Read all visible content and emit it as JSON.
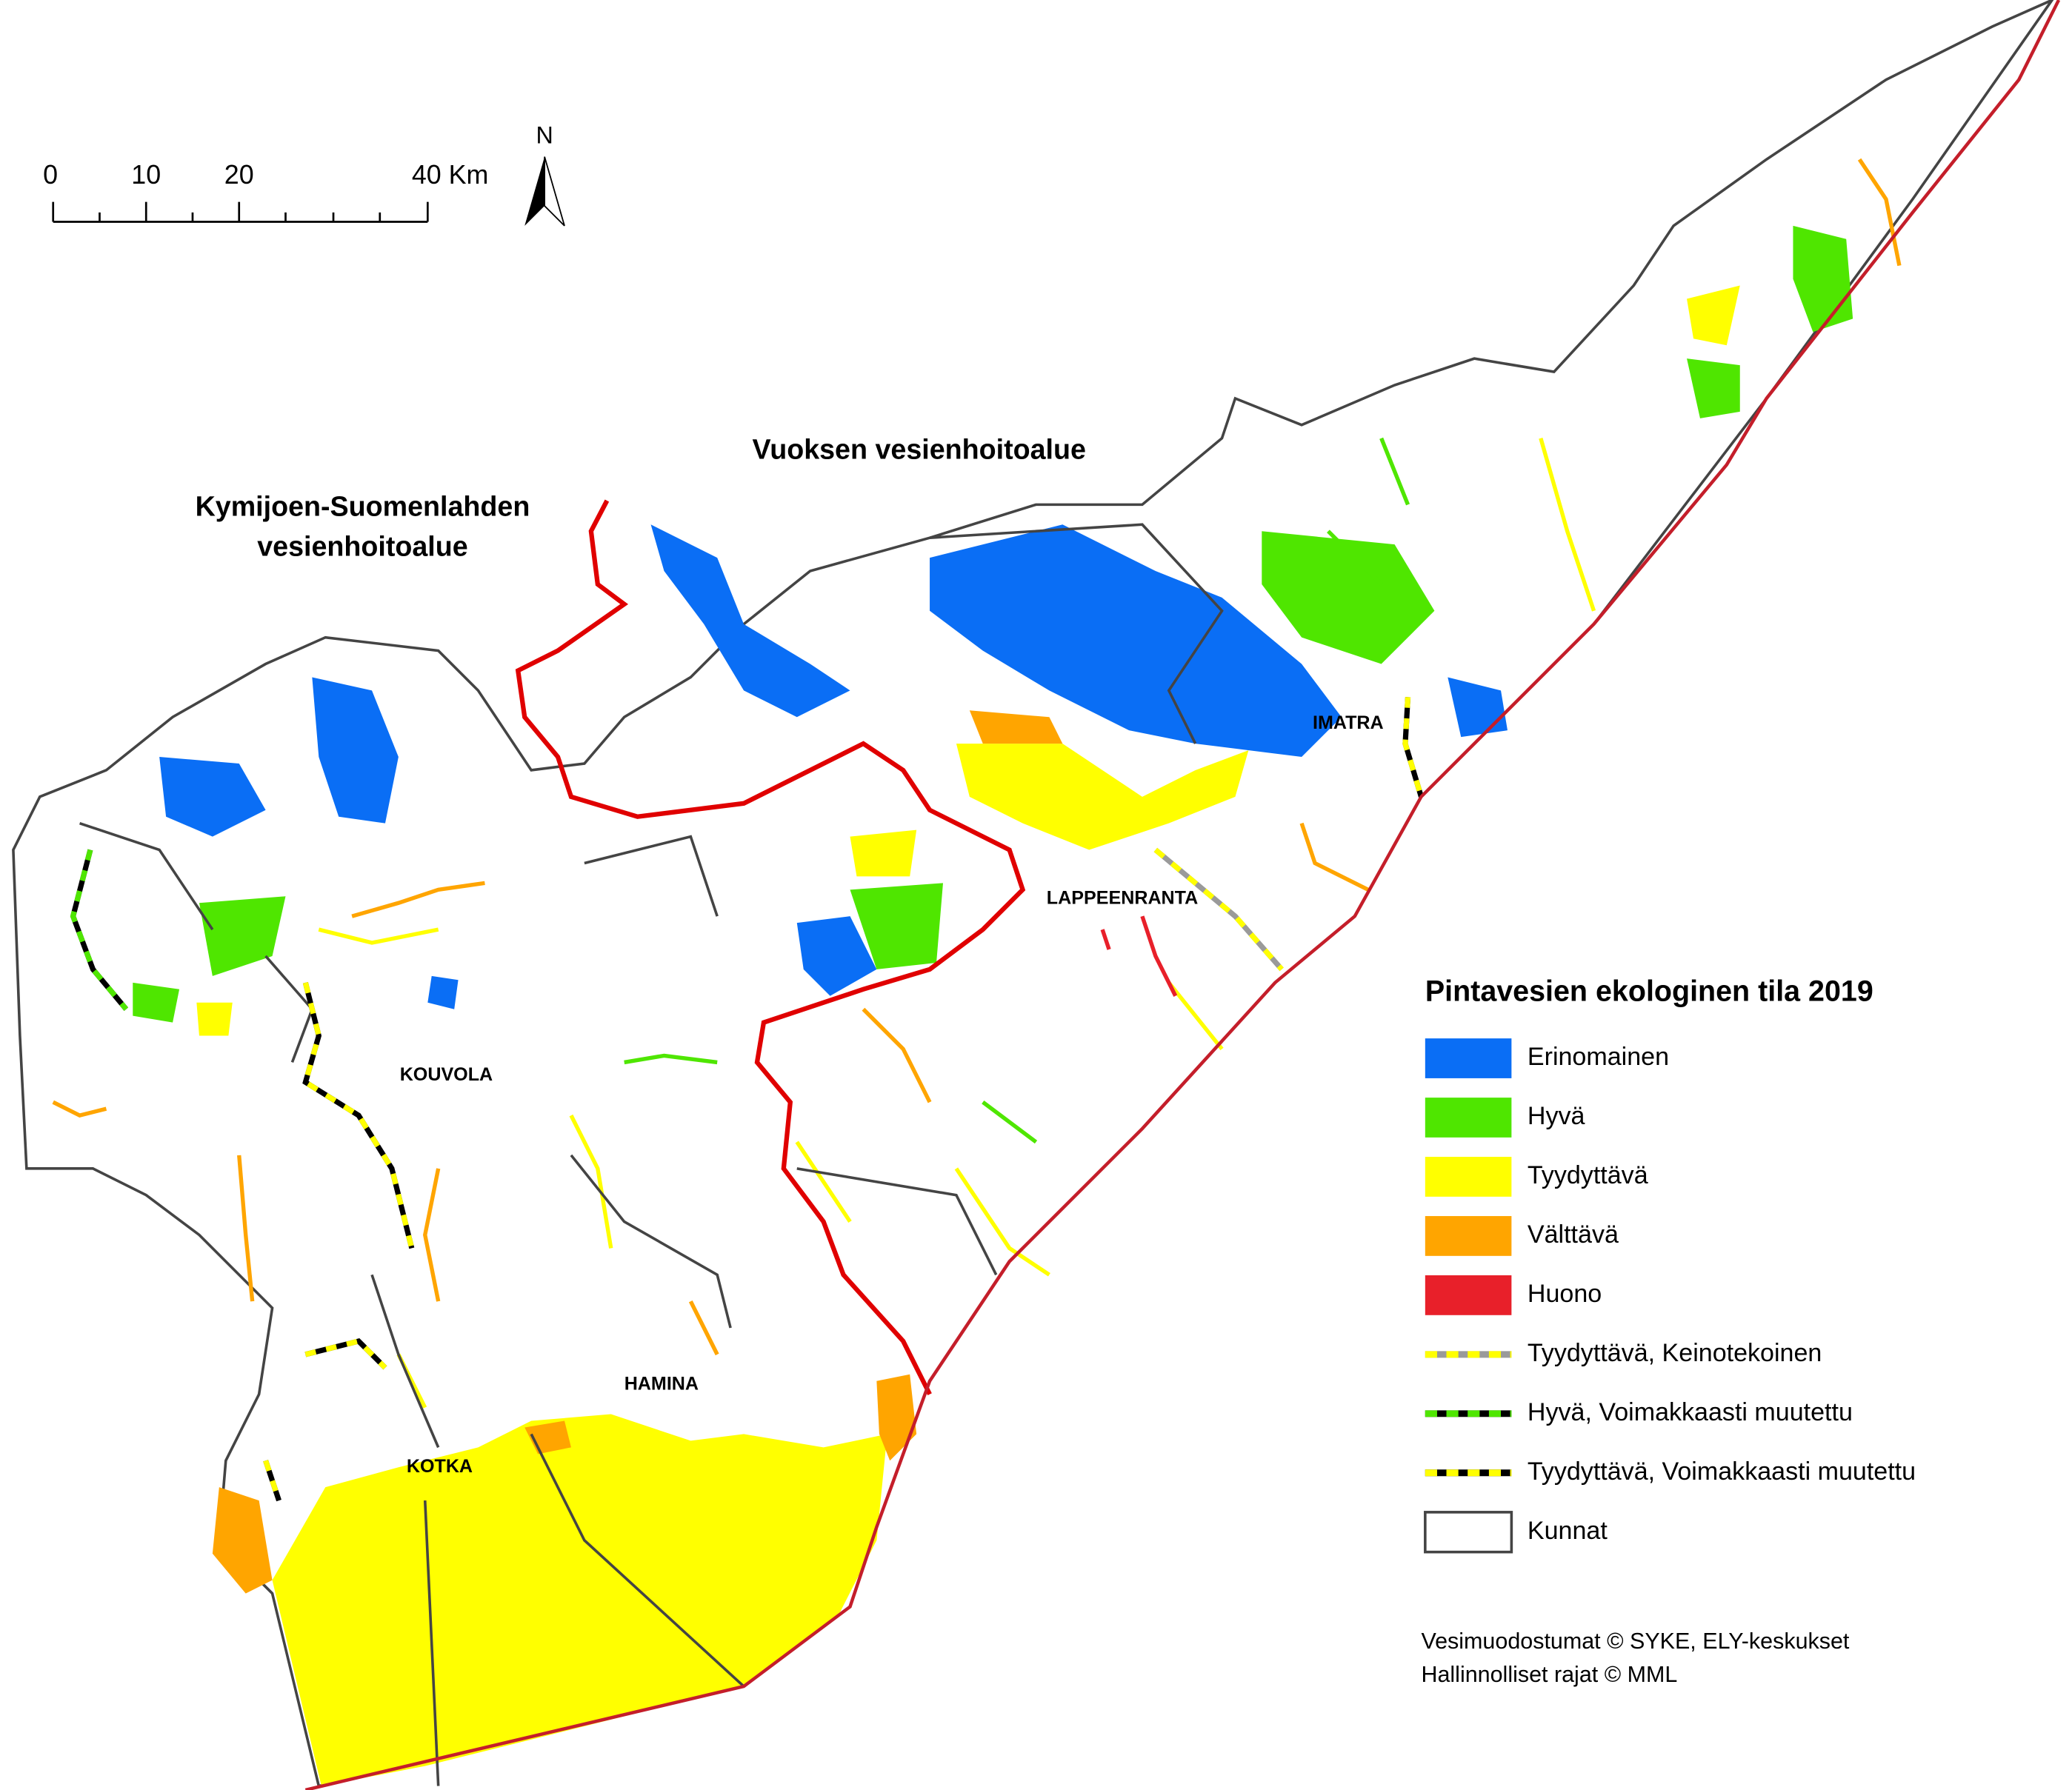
{
  "map": {
    "scale_bar": {
      "labels": [
        "0",
        "10",
        "20",
        "40 Km"
      ]
    },
    "north_arrow": "N",
    "region_labels": [
      [
        "Vuoksen vesienhoitoalue"
      ],
      [
        "Kymijoen-Suomenlahden",
        "vesienhoitoalue"
      ]
    ],
    "place_labels": [
      "IMATRA",
      "LAPPEENRANTA",
      "KOUVOLA",
      "HAMINA",
      "KOTKA"
    ],
    "legend": {
      "title": "Pintavesien ekologinen tila 2019",
      "items": [
        {
          "label": "Erinomainen",
          "color": "#0a6ef5"
        },
        {
          "label": "Hyvä",
          "color": "#4fe600"
        },
        {
          "label": "Tyydyttävä",
          "color": "#ffff00"
        },
        {
          "label": "Välttävä",
          "color": "#ffa500"
        },
        {
          "label": "Huono",
          "color": "#e8202a"
        },
        {
          "label": "Tyydyttävä, Keinotekoinen",
          "colors": [
            "#9a9a9a",
            "#ffff00"
          ]
        },
        {
          "label": "Hyvä, Voimakkaasti muutettu",
          "colors": [
            "#000000",
            "#4fe600"
          ]
        },
        {
          "label": "Tyydyttävä, Voimakkaasti muutettu",
          "colors": [
            "#000000",
            "#ffff00"
          ]
        },
        {
          "label": "Kunnat"
        }
      ]
    },
    "credits": [
      "Vesimuodostumat © SYKE, ELY-keskukset",
      "Hallinnolliset rajat © MML"
    ]
  }
}
